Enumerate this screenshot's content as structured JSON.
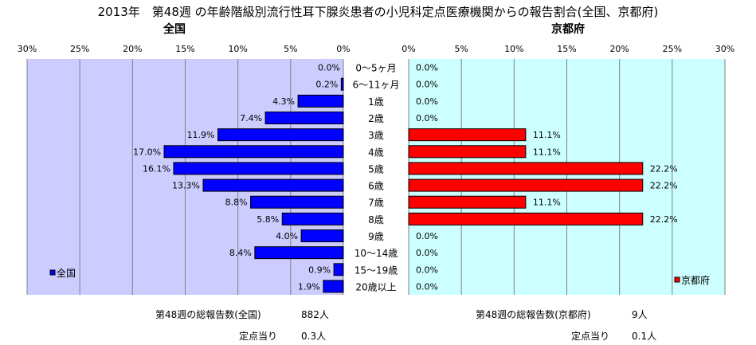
{
  "title": "2013年　第48週 の年齢階級別流行性耳下腺炎患者の小児科定点医療機関からの報告割合(全国、京都府)",
  "left_chart_title": "全国",
  "right_chart_title": "京都府",
  "colors": {
    "national_bar": "#0000ff",
    "kyoto_bar": "#ff0000",
    "plot_bg_left": "#ccccff",
    "plot_bg_right": "#ccffff",
    "grid": "#808080"
  },
  "chart_data": [
    {
      "type": "bar",
      "orientation": "horizontal",
      "direction": "right-to-left",
      "title": "全国",
      "xlim": [
        0,
        30
      ],
      "xticks": [
        "30%",
        "25%",
        "20%",
        "15%",
        "10%",
        "5%",
        "0%"
      ],
      "categories": [
        "0～5ヶ月",
        "6～11ヶ月",
        "1歳",
        "2歳",
        "3歳",
        "4歳",
        "5歳",
        "6歳",
        "7歳",
        "8歳",
        "9歳",
        "10～14歳",
        "15～19歳",
        "20歳以上"
      ],
      "series": [
        {
          "name": "全国",
          "values": [
            0.0,
            0.2,
            4.3,
            7.4,
            11.9,
            17.0,
            16.1,
            13.3,
            8.8,
            5.8,
            4.0,
            8.4,
            0.9,
            1.9
          ],
          "labels": [
            "0.0%",
            "0.2%",
            "4.3%",
            "7.4%",
            "11.9%",
            "17.0%",
            "16.1%",
            "13.3%",
            "8.8%",
            "5.8%",
            "4.0%",
            "8.4%",
            "0.9%",
            "1.9%"
          ]
        }
      ],
      "legend": "bottom-left",
      "grid": true
    },
    {
      "type": "bar",
      "orientation": "horizontal",
      "direction": "left-to-right",
      "title": "京都府",
      "xlim": [
        0,
        30
      ],
      "xticks": [
        "0%",
        "5%",
        "10%",
        "15%",
        "20%",
        "25%",
        "30%"
      ],
      "categories": [
        "0～5ヶ月",
        "6～11ヶ月",
        "1歳",
        "2歳",
        "3歳",
        "4歳",
        "5歳",
        "6歳",
        "7歳",
        "8歳",
        "9歳",
        "10～14歳",
        "15～19歳",
        "20歳以上"
      ],
      "series": [
        {
          "name": "京都府",
          "values": [
            0.0,
            0.0,
            0.0,
            0.0,
            11.1,
            11.1,
            22.2,
            22.2,
            11.1,
            22.2,
            0.0,
            0.0,
            0.0,
            0.0
          ],
          "labels": [
            "0.0%",
            "0.0%",
            "0.0%",
            "0.0%",
            "11.1%",
            "11.1%",
            "22.2%",
            "22.2%",
            "11.1%",
            "22.2%",
            "0.0%",
            "0.0%",
            "0.0%",
            "0.0%"
          ]
        }
      ],
      "legend": "bottom-right",
      "grid": true
    }
  ],
  "footer": {
    "left_total_label": "第48週の総報告数(全国)",
    "left_total_value": "882人",
    "left_per_label": "定点当り",
    "left_per_value": "0.3人",
    "right_total_label": "第48週の総報告数(京都府)",
    "right_total_value": "9人",
    "right_per_label": "定点当り",
    "right_per_value": "0.1人"
  }
}
